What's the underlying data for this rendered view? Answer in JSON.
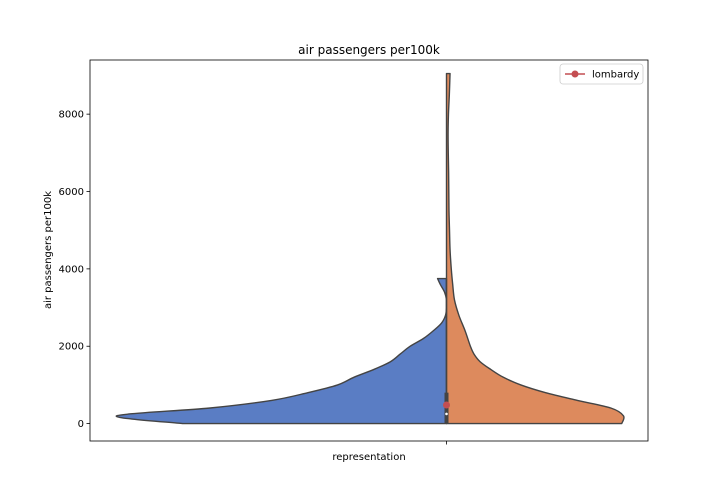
{
  "chart_data": {
    "type": "violin",
    "title": "air passengers per100k",
    "xlabel": "representation",
    "ylabel": "air passengers per100k",
    "categories": [
      "representation"
    ],
    "ylim": [
      -450,
      9400
    ],
    "yticks": [
      0,
      2000,
      4000,
      6000,
      8000
    ],
    "grid": false,
    "legend": {
      "placement": "top-right",
      "entries": [
        "lombardy"
      ]
    },
    "split": true,
    "series": [
      {
        "side": "left",
        "color": "#5a7dc4",
        "max": 3750,
        "density": [
          [
            0,
            0.8
          ],
          [
            200,
            1.0
          ],
          [
            400,
            0.72
          ],
          [
            600,
            0.53
          ],
          [
            800,
            0.42
          ],
          [
            1000,
            0.33
          ],
          [
            1200,
            0.28
          ],
          [
            1400,
            0.22
          ],
          [
            1600,
            0.17
          ],
          [
            1800,
            0.14
          ],
          [
            2000,
            0.11
          ],
          [
            2200,
            0.07
          ],
          [
            2400,
            0.04
          ],
          [
            2600,
            0.015
          ],
          [
            2800,
            0.003
          ],
          [
            3000,
            0.0
          ],
          [
            3200,
            0.0
          ],
          [
            3400,
            0.006
          ],
          [
            3600,
            0.019
          ],
          [
            3750,
            0.027
          ]
        ]
      },
      {
        "side": "right",
        "color": "#dd8a5d",
        "max": 9050,
        "density": [
          [
            0,
            0.99
          ],
          [
            200,
            1.0
          ],
          [
            400,
            0.93
          ],
          [
            600,
            0.74
          ],
          [
            800,
            0.56
          ],
          [
            1000,
            0.42
          ],
          [
            1200,
            0.32
          ],
          [
            1400,
            0.25
          ],
          [
            1600,
            0.19
          ],
          [
            1800,
            0.155
          ],
          [
            2000,
            0.135
          ],
          [
            2400,
            0.105
          ],
          [
            2800,
            0.07
          ],
          [
            3200,
            0.045
          ],
          [
            3600,
            0.035
          ],
          [
            4000,
            0.027
          ],
          [
            4500,
            0.02
          ],
          [
            5000,
            0.017
          ],
          [
            5500,
            0.014
          ],
          [
            6000,
            0.013
          ],
          [
            6500,
            0.012
          ],
          [
            7000,
            0.01
          ],
          [
            7500,
            0.009
          ],
          [
            8000,
            0.011
          ],
          [
            8500,
            0.016
          ],
          [
            9050,
            0.02
          ]
        ]
      }
    ],
    "box": {
      "color": "#444444",
      "q1": 0,
      "q3": 800,
      "median": 250,
      "whisker_low": 0,
      "whisker_high": 3750
    },
    "marker": {
      "name": "lombardy",
      "value": 480,
      "color": "#c44e52"
    }
  }
}
